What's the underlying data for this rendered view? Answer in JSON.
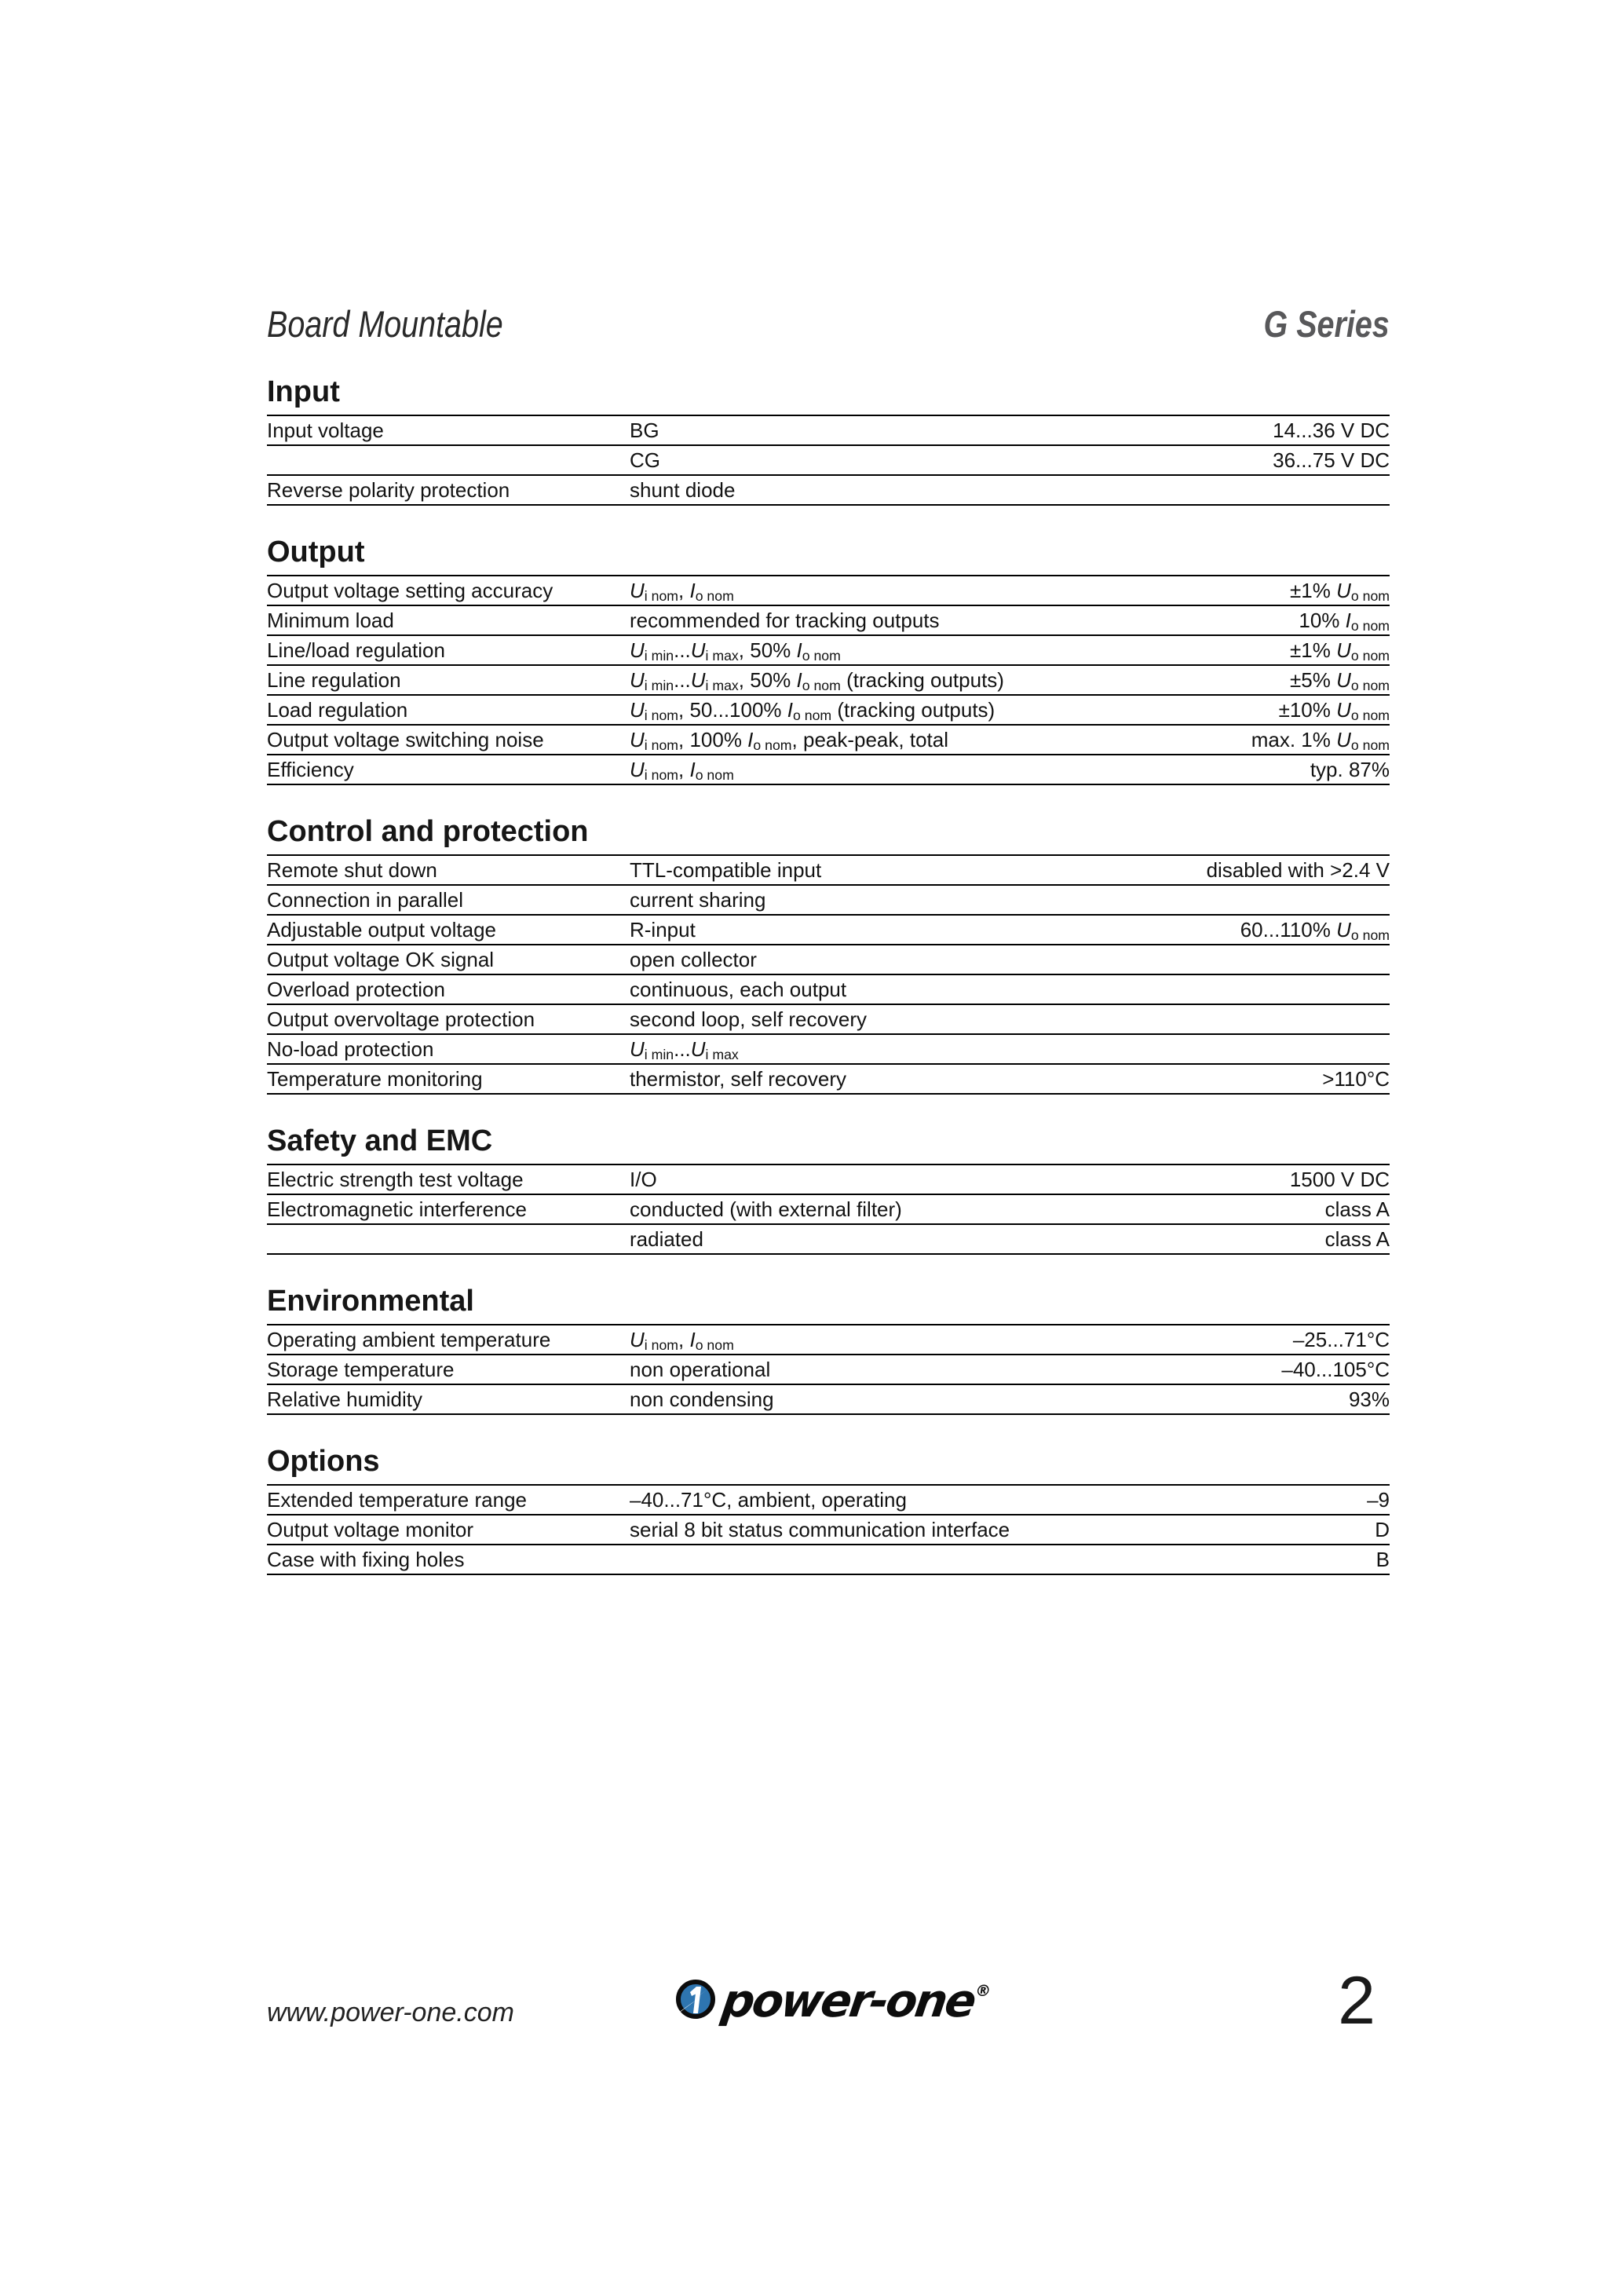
{
  "header": {
    "title_left": "Board Mountable",
    "title_right": "G Series"
  },
  "colors": {
    "text": "#1d1d1b",
    "series_gray": "#58585a",
    "logo_blue": "#2e75b0",
    "rule": "#000000"
  },
  "sections": [
    {
      "title": "Input",
      "rows": [
        {
          "c1": "Input voltage",
          "c2": "BG",
          "c3": "14...36 V DC"
        },
        {
          "c1": "",
          "c2": "CG",
          "c3": "36...75 V DC"
        },
        {
          "c1": "Reverse polarity protection",
          "c2": "shunt diode",
          "c3": ""
        }
      ]
    },
    {
      "title": "Output",
      "rows": [
        {
          "c1": "Output voltage setting accuracy",
          "c2": "*U*~i nom~, *I*~o nom~",
          "c3": "±1% *U*~o nom~"
        },
        {
          "c1": "Minimum load",
          "c2": "recommended for tracking outputs",
          "c3": "10% *I*~o nom~"
        },
        {
          "c1": "Line/load regulation",
          "c2": "*U*~i min~...*U*~i max~, 50% *I*~o nom~",
          "c3": "±1% *U*~o nom~"
        },
        {
          "c1": "Line regulation",
          "c2": "*U*~i min~...*U*~i max~, 50% *I*~o nom~ (tracking outputs)",
          "c3": "±5% *U*~o nom~"
        },
        {
          "c1": "Load regulation",
          "c2": "*U*~i nom~, 50...100% *I*~o nom~ (tracking outputs)",
          "c3": "±10% *U*~o nom~"
        },
        {
          "c1": "Output voltage switching noise",
          "c2": "*U*~i nom~, 100% *I*~o nom~, peak-peak, total",
          "c3": "max. 1% *U*~o nom~"
        },
        {
          "c1": "Efficiency",
          "c2": "*U*~i nom~, *I*~o nom~",
          "c3": "typ. 87%"
        }
      ]
    },
    {
      "title": "Control and protection",
      "rows": [
        {
          "c1": "Remote shut down",
          "c2": "TTL-compatible input",
          "c3": "disabled with >2.4 V"
        },
        {
          "c1": "Connection in parallel",
          "c2": "current sharing",
          "c3": ""
        },
        {
          "c1": "Adjustable output voltage",
          "c2": "R-input",
          "c3": "60...110% *U*~o nom~"
        },
        {
          "c1": "Output voltage OK signal",
          "c2": "open collector",
          "c3": ""
        },
        {
          "c1": "Overload protection",
          "c2": "continuous, each output",
          "c3": ""
        },
        {
          "c1": "Output overvoltage protection",
          "c2": "second loop, self recovery",
          "c3": ""
        },
        {
          "c1": "No-load protection",
          "c2": "*U*~i min~...*U*~i max~",
          "c3": ""
        },
        {
          "c1": "Temperature monitoring",
          "c2": "thermistor, self recovery",
          "c3": ">110°C"
        }
      ]
    },
    {
      "title": "Safety and EMC",
      "rows": [
        {
          "c1": "Electric strength test voltage",
          "c2": "I/O",
          "c3": "1500 V DC"
        },
        {
          "c1": "Electromagnetic interference",
          "c2": "conducted (with external filter)",
          "c3": "class A"
        },
        {
          "c1": "",
          "c2": "radiated",
          "c3": "class A"
        }
      ]
    },
    {
      "title": "Environmental",
      "rows": [
        {
          "c1": "Operating ambient temperature",
          "c2": "*U*~i nom~, *I*~o nom~",
          "c3": "–25...71°C"
        },
        {
          "c1": "Storage temperature",
          "c2": "non operational",
          "c3": "–40...105°C"
        },
        {
          "c1": "Relative humidity",
          "c2": "non condensing",
          "c3": "93%"
        }
      ]
    },
    {
      "title": "Options",
      "rows": [
        {
          "c1": "Extended temperature range",
          "c2": "–40...71°C, ambient, operating",
          "c3": "–9"
        },
        {
          "c1": "Output voltage monitor",
          "c2": "serial 8 bit status communication interface",
          "c3": "D"
        },
        {
          "c1": "Case with fixing holes",
          "c2": "",
          "c3": "B"
        }
      ]
    }
  ],
  "footer": {
    "website": "www.power-one.com",
    "logo_wordmark": "power-one",
    "registered_mark": "®",
    "page_number": "2"
  }
}
